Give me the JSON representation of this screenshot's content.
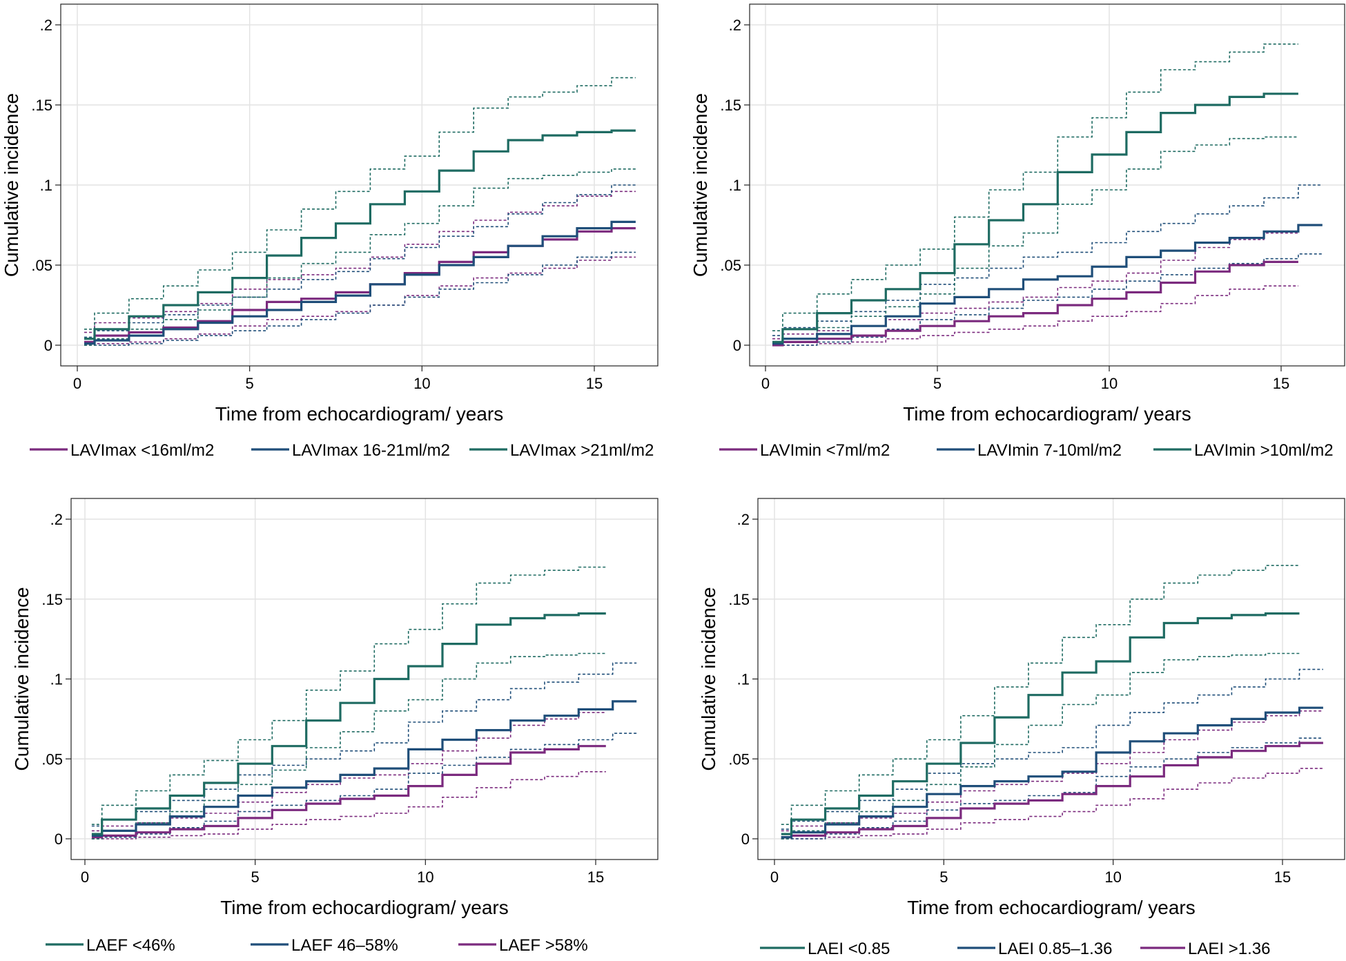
{
  "chart_data": [
    {
      "type": "line",
      "title": "",
      "xlabel": "Time from echocardiogram/ years",
      "ylabel": "Cumulative incidence",
      "xlim": [
        0,
        17
      ],
      "ylim": [
        0,
        0.2
      ],
      "xticks": [
        "0",
        "5",
        "10",
        "15"
      ],
      "yticks": [
        "0",
        ".05",
        ".1",
        ".15",
        ".2"
      ],
      "grid": true,
      "legend_position": "bottom",
      "legend_order": [
        0,
        1,
        2
      ],
      "series": [
        {
          "name": "LAVImax <16ml/m2",
          "color": "#7b2a7e",
          "x": [
            0.5,
            1.5,
            2.5,
            3.5,
            4.5,
            5.5,
            6.5,
            7.5,
            8.5,
            9.5,
            10.5,
            11.5,
            12.5,
            13.5,
            14.5,
            15.5,
            16.2
          ],
          "values": [
            0.002,
            0.006,
            0.008,
            0.011,
            0.015,
            0.022,
            0.027,
            0.029,
            0.033,
            0.038,
            0.045,
            0.052,
            0.058,
            0.062,
            0.066,
            0.071,
            0.073
          ],
          "lower": [
            0.0,
            0.001,
            0.002,
            0.004,
            0.007,
            0.012,
            0.016,
            0.018,
            0.021,
            0.025,
            0.031,
            0.037,
            0.042,
            0.045,
            0.048,
            0.053,
            0.055
          ],
          "upper": [
            0.008,
            0.014,
            0.017,
            0.021,
            0.026,
            0.035,
            0.041,
            0.044,
            0.048,
            0.055,
            0.063,
            0.071,
            0.078,
            0.083,
            0.087,
            0.093,
            0.096
          ]
        },
        {
          "name": "LAVImax 16-21ml/m2",
          "color": "#1f4e79",
          "x": [
            0.5,
            1.5,
            2.5,
            3.5,
            4.5,
            5.5,
            6.5,
            7.5,
            8.5,
            9.5,
            10.5,
            11.5,
            12.5,
            13.5,
            14.5,
            15.5,
            16.2
          ],
          "values": [
            0.001,
            0.003,
            0.006,
            0.01,
            0.014,
            0.018,
            0.022,
            0.027,
            0.031,
            0.038,
            0.044,
            0.05,
            0.055,
            0.062,
            0.068,
            0.073,
            0.077
          ],
          "lower": [
            0.0,
            0.0,
            0.001,
            0.003,
            0.006,
            0.009,
            0.012,
            0.016,
            0.02,
            0.025,
            0.03,
            0.035,
            0.039,
            0.044,
            0.05,
            0.055,
            0.058
          ],
          "upper": [
            0.005,
            0.009,
            0.014,
            0.019,
            0.025,
            0.03,
            0.035,
            0.041,
            0.046,
            0.054,
            0.061,
            0.068,
            0.074,
            0.082,
            0.089,
            0.094,
            0.1
          ]
        },
        {
          "name": "LAVImax >21ml/m2",
          "color": "#1e6b62",
          "x": [
            0.5,
            1.5,
            2.5,
            3.5,
            4.5,
            5.5,
            6.5,
            7.5,
            8.5,
            9.5,
            10.5,
            11.5,
            12.5,
            13.5,
            14.5,
            15.5,
            16.2
          ],
          "values": [
            0.004,
            0.01,
            0.018,
            0.025,
            0.033,
            0.042,
            0.056,
            0.067,
            0.076,
            0.088,
            0.096,
            0.109,
            0.121,
            0.128,
            0.131,
            0.133,
            0.134
          ],
          "lower": [
            0.0,
            0.004,
            0.01,
            0.016,
            0.022,
            0.03,
            0.042,
            0.051,
            0.058,
            0.069,
            0.076,
            0.087,
            0.098,
            0.104,
            0.106,
            0.108,
            0.11
          ],
          "upper": [
            0.01,
            0.02,
            0.029,
            0.037,
            0.047,
            0.058,
            0.072,
            0.085,
            0.096,
            0.11,
            0.118,
            0.133,
            0.148,
            0.155,
            0.158,
            0.162,
            0.167
          ]
        }
      ]
    },
    {
      "type": "line",
      "title": "",
      "xlabel": "Time from echocardiogram/ years",
      "ylabel": "Cumulative incidence",
      "xlim": [
        0,
        17
      ],
      "ylim": [
        0,
        0.2
      ],
      "xticks": [
        "0",
        "5",
        "10",
        "15"
      ],
      "yticks": [
        "0",
        ".05",
        ".1",
        ".15",
        ".2"
      ],
      "grid": true,
      "legend_position": "bottom",
      "legend_order": [
        0,
        1,
        2
      ],
      "series": [
        {
          "name": "LAVImin <7ml/m2",
          "color": "#7b2a7e",
          "x": [
            0.5,
            1.5,
            2.5,
            3.5,
            4.5,
            5.5,
            6.5,
            7.5,
            8.5,
            9.5,
            10.5,
            11.5,
            12.5,
            13.5,
            14.5,
            15.5
          ],
          "values": [
            0.0,
            0.002,
            0.004,
            0.006,
            0.009,
            0.012,
            0.015,
            0.018,
            0.02,
            0.025,
            0.029,
            0.033,
            0.039,
            0.046,
            0.05,
            0.052
          ],
          "lower": [
            0.0,
            0.0,
            0.001,
            0.002,
            0.004,
            0.006,
            0.008,
            0.01,
            0.012,
            0.015,
            0.018,
            0.021,
            0.026,
            0.031,
            0.035,
            0.037
          ],
          "upper": [
            0.004,
            0.007,
            0.009,
            0.012,
            0.016,
            0.02,
            0.023,
            0.027,
            0.03,
            0.036,
            0.04,
            0.045,
            0.053,
            0.061,
            0.066,
            0.07
          ]
        },
        {
          "name": "LAVImin 7-10ml/m2",
          "color": "#1f4e79",
          "x": [
            0.5,
            1.5,
            2.5,
            3.5,
            4.5,
            5.5,
            6.5,
            7.5,
            8.5,
            9.5,
            10.5,
            11.5,
            12.5,
            13.5,
            14.5,
            15.5,
            16.2
          ],
          "values": [
            0.001,
            0.004,
            0.007,
            0.012,
            0.018,
            0.026,
            0.03,
            0.035,
            0.041,
            0.043,
            0.049,
            0.055,
            0.059,
            0.064,
            0.067,
            0.071,
            0.075
          ],
          "lower": [
            0.0,
            0.0,
            0.002,
            0.005,
            0.01,
            0.016,
            0.019,
            0.023,
            0.028,
            0.03,
            0.035,
            0.04,
            0.044,
            0.048,
            0.051,
            0.054,
            0.057
          ],
          "upper": [
            0.006,
            0.011,
            0.015,
            0.021,
            0.028,
            0.038,
            0.042,
            0.048,
            0.055,
            0.058,
            0.064,
            0.071,
            0.076,
            0.082,
            0.087,
            0.092,
            0.1
          ]
        },
        {
          "name": "LAVImin >10ml/m2",
          "color": "#1e6b62",
          "x": [
            0.5,
            1.5,
            2.5,
            3.5,
            4.5,
            5.5,
            6.5,
            7.5,
            8.5,
            9.5,
            10.5,
            11.5,
            12.5,
            13.5,
            14.5,
            15.5
          ],
          "values": [
            0.002,
            0.01,
            0.02,
            0.028,
            0.035,
            0.045,
            0.063,
            0.078,
            0.088,
            0.108,
            0.119,
            0.133,
            0.145,
            0.15,
            0.155,
            0.157
          ],
          "lower": [
            0.0,
            0.004,
            0.011,
            0.018,
            0.024,
            0.032,
            0.048,
            0.062,
            0.07,
            0.088,
            0.097,
            0.11,
            0.121,
            0.125,
            0.129,
            0.13
          ],
          "upper": [
            0.009,
            0.02,
            0.032,
            0.041,
            0.05,
            0.06,
            0.08,
            0.097,
            0.108,
            0.13,
            0.142,
            0.158,
            0.172,
            0.177,
            0.183,
            0.188
          ]
        }
      ]
    },
    {
      "type": "line",
      "title": "",
      "xlabel": "Time from echocardiogram/ years",
      "ylabel": "Cumulative incidence",
      "xlim": [
        0,
        17
      ],
      "ylim": [
        0,
        0.2
      ],
      "xticks": [
        "0",
        "5",
        "10",
        "15"
      ],
      "yticks": [
        "0",
        ".05",
        ".1",
        ".15",
        ".2"
      ],
      "grid": true,
      "legend_position": "bottom",
      "legend_order": [
        2,
        1,
        0
      ],
      "series": [
        {
          "name": "LAEF >58%",
          "color": "#7b2a7e",
          "x": [
            0.5,
            1.5,
            2.5,
            3.5,
            4.5,
            5.5,
            6.5,
            7.5,
            8.5,
            9.5,
            10.5,
            11.5,
            12.5,
            13.5,
            14.5,
            15.3
          ],
          "values": [
            0.001,
            0.002,
            0.004,
            0.006,
            0.008,
            0.013,
            0.018,
            0.022,
            0.025,
            0.027,
            0.033,
            0.04,
            0.047,
            0.054,
            0.056,
            0.058
          ],
          "lower": [
            0.0,
            0.0,
            0.001,
            0.002,
            0.003,
            0.006,
            0.009,
            0.012,
            0.014,
            0.016,
            0.02,
            0.026,
            0.032,
            0.037,
            0.039,
            0.042
          ],
          "upper": [
            0.005,
            0.008,
            0.01,
            0.013,
            0.016,
            0.023,
            0.029,
            0.034,
            0.038,
            0.04,
            0.047,
            0.055,
            0.063,
            0.071,
            0.075,
            0.079
          ]
        },
        {
          "name": "LAEF 46–58%",
          "color": "#1f4e79",
          "x": [
            0.5,
            1.5,
            2.5,
            3.5,
            4.5,
            5.5,
            6.5,
            7.5,
            8.5,
            9.5,
            10.5,
            11.5,
            12.5,
            13.5,
            14.5,
            15.5,
            16.2
          ],
          "values": [
            0.002,
            0.005,
            0.009,
            0.014,
            0.02,
            0.027,
            0.032,
            0.036,
            0.04,
            0.044,
            0.056,
            0.062,
            0.068,
            0.074,
            0.077,
            0.081,
            0.086
          ],
          "lower": [
            0.0,
            0.001,
            0.003,
            0.007,
            0.011,
            0.017,
            0.021,
            0.024,
            0.027,
            0.031,
            0.041,
            0.046,
            0.051,
            0.056,
            0.059,
            0.062,
            0.066
          ],
          "upper": [
            0.008,
            0.012,
            0.017,
            0.024,
            0.031,
            0.04,
            0.046,
            0.05,
            0.055,
            0.06,
            0.073,
            0.08,
            0.087,
            0.094,
            0.098,
            0.103,
            0.11
          ]
        },
        {
          "name": "LAEF <46%",
          "color": "#1e6b62",
          "x": [
            0.5,
            1.5,
            2.5,
            3.5,
            4.5,
            5.5,
            6.5,
            7.5,
            8.5,
            9.5,
            10.5,
            11.5,
            12.5,
            13.5,
            14.5,
            15.3
          ],
          "values": [
            0.003,
            0.012,
            0.019,
            0.027,
            0.035,
            0.047,
            0.058,
            0.074,
            0.085,
            0.1,
            0.108,
            0.122,
            0.134,
            0.138,
            0.14,
            0.141
          ],
          "lower": [
            0.0,
            0.005,
            0.01,
            0.017,
            0.024,
            0.034,
            0.043,
            0.057,
            0.067,
            0.08,
            0.087,
            0.1,
            0.11,
            0.114,
            0.115,
            0.116
          ],
          "upper": [
            0.009,
            0.021,
            0.03,
            0.04,
            0.049,
            0.062,
            0.074,
            0.093,
            0.105,
            0.122,
            0.131,
            0.147,
            0.16,
            0.165,
            0.168,
            0.17
          ]
        }
      ]
    },
    {
      "type": "line",
      "title": "",
      "xlabel": "Time from echocardiogram/ years",
      "ylabel": "Cumulative incidence",
      "xlim": [
        0,
        17
      ],
      "ylim": [
        0,
        0.2
      ],
      "xticks": [
        "0",
        "5",
        "10",
        "15"
      ],
      "yticks": [
        "0",
        ".05",
        ".1",
        ".15",
        ".2"
      ],
      "grid": true,
      "legend_position": "bottom",
      "legend_order": [
        2,
        1,
        0
      ],
      "series": [
        {
          "name": "LAEI >1.36",
          "color": "#7b2a7e",
          "x": [
            0.5,
            1.5,
            2.5,
            3.5,
            4.5,
            5.5,
            6.5,
            7.5,
            8.5,
            9.5,
            10.5,
            11.5,
            12.5,
            13.5,
            14.5,
            15.5,
            16.2
          ],
          "values": [
            0.001,
            0.002,
            0.004,
            0.006,
            0.008,
            0.013,
            0.019,
            0.022,
            0.024,
            0.028,
            0.033,
            0.039,
            0.046,
            0.051,
            0.055,
            0.058,
            0.06
          ],
          "lower": [
            0.0,
            0.0,
            0.001,
            0.002,
            0.003,
            0.006,
            0.01,
            0.012,
            0.014,
            0.017,
            0.021,
            0.025,
            0.031,
            0.035,
            0.038,
            0.041,
            0.044
          ],
          "upper": [
            0.005,
            0.008,
            0.01,
            0.013,
            0.016,
            0.023,
            0.03,
            0.034,
            0.036,
            0.041,
            0.047,
            0.054,
            0.062,
            0.068,
            0.073,
            0.077,
            0.08
          ]
        },
        {
          "name": "LAEI 0.85–1.36",
          "color": "#1f4e79",
          "x": [
            0.5,
            1.5,
            2.5,
            3.5,
            4.5,
            5.5,
            6.5,
            7.5,
            8.5,
            9.5,
            10.5,
            11.5,
            12.5,
            13.5,
            14.5,
            15.5,
            16.2
          ],
          "values": [
            0.001,
            0.004,
            0.009,
            0.014,
            0.02,
            0.028,
            0.033,
            0.036,
            0.039,
            0.042,
            0.054,
            0.061,
            0.066,
            0.071,
            0.075,
            0.079,
            0.082
          ],
          "lower": [
            0.0,
            0.0,
            0.003,
            0.007,
            0.011,
            0.018,
            0.022,
            0.024,
            0.027,
            0.029,
            0.039,
            0.045,
            0.05,
            0.054,
            0.057,
            0.06,
            0.063
          ],
          "upper": [
            0.006,
            0.011,
            0.017,
            0.024,
            0.031,
            0.041,
            0.047,
            0.05,
            0.054,
            0.057,
            0.071,
            0.079,
            0.085,
            0.09,
            0.095,
            0.1,
            0.106
          ]
        },
        {
          "name": "LAEI <0.85",
          "color": "#1e6b62",
          "x": [
            0.5,
            1.5,
            2.5,
            3.5,
            4.5,
            5.5,
            6.5,
            7.5,
            8.5,
            9.5,
            10.5,
            11.5,
            12.5,
            13.5,
            14.5,
            15.5
          ],
          "values": [
            0.003,
            0.012,
            0.019,
            0.027,
            0.036,
            0.047,
            0.06,
            0.076,
            0.09,
            0.104,
            0.111,
            0.126,
            0.135,
            0.138,
            0.14,
            0.141
          ],
          "lower": [
            0.0,
            0.005,
            0.01,
            0.017,
            0.024,
            0.034,
            0.045,
            0.059,
            0.071,
            0.084,
            0.09,
            0.104,
            0.112,
            0.114,
            0.115,
            0.116
          ],
          "upper": [
            0.009,
            0.021,
            0.03,
            0.04,
            0.05,
            0.062,
            0.077,
            0.095,
            0.11,
            0.126,
            0.134,
            0.15,
            0.16,
            0.165,
            0.168,
            0.171
          ]
        }
      ]
    }
  ]
}
